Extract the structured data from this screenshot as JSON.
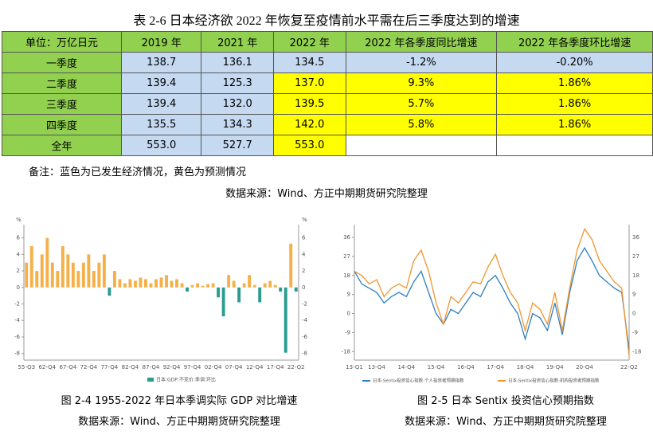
{
  "table": {
    "title": "表 2-6 日本经济欲 2022 年恢复至疫情前水平需在后三季度达到的增速",
    "columns": [
      "单位：万亿日元",
      "2019 年",
      "2021 年",
      "2022 年",
      "2022 年各季度同比增速",
      "2022 年各季度环比增速"
    ],
    "rows": [
      [
        "一季度",
        "138.7",
        "136.1",
        "134.5",
        "-1.2%",
        "-0.20%"
      ],
      [
        "二季度",
        "139.4",
        "125.3",
        "137.0",
        "9.3%",
        "1.86%"
      ],
      [
        "三季度",
        "139.4",
        "132.0",
        "139.5",
        "5.7%",
        "1.86%"
      ],
      [
        "四季度",
        "135.5",
        "134.3",
        "142.0",
        "5.8%",
        "1.86%"
      ],
      [
        "全年",
        "553.0",
        "527.7",
        "553.0",
        "",
        ""
      ]
    ],
    "note": "备注：蓝色为已发生经济情况，黄色为预测情况",
    "source": "数据来源：Wind、方正中期期货研究院整理"
  },
  "chart_data": [
    {
      "type": "bar",
      "caption": "图 2-4 1955-2022 年日本季调实际 GDP 对比增速",
      "source": "数据来源：Wind、方正中期期货研究院整理",
      "y_unit": "%",
      "categories": [
        "55-Q3",
        null,
        null,
        null,
        "62-Q4",
        null,
        null,
        null,
        "67-Q4",
        null,
        null,
        null,
        "72-Q4",
        null,
        null,
        null,
        "77-Q4",
        null,
        null,
        null,
        "82-Q4",
        null,
        null,
        null,
        "87-Q4",
        null,
        null,
        null,
        "92-Q4",
        null,
        null,
        null,
        "97-Q4",
        null,
        null,
        null,
        "02-Q4",
        null,
        null,
        null,
        "07-Q4",
        null,
        null,
        null,
        "12-Q4",
        null,
        null,
        null,
        "17-Q4",
        null,
        null,
        null,
        "22-Q2"
      ],
      "series": [
        {
          "name": "日本:GDP:不变价:季调:环比",
          "color": "#f5b04a",
          "negative_color": "#2a9d8f",
          "values": [
            3,
            5,
            2,
            4,
            6,
            3,
            2,
            5,
            4,
            3,
            2,
            3,
            4,
            2,
            3,
            4,
            -1,
            2,
            1,
            0.5,
            1,
            0.8,
            1.2,
            1,
            0.5,
            1,
            1.2,
            1.5,
            0.8,
            1,
            0.5,
            -0.5,
            0.3,
            0.5,
            0.2,
            0.4,
            0.5,
            -1.2,
            -3.5,
            1.5,
            0.8,
            -1.8,
            0.5,
            1.5,
            0.3,
            -1.8,
            0.5,
            0.8,
            0.3,
            -0.5,
            -7.9,
            5.3,
            -0.5
          ]
        }
      ],
      "ylim": [
        -8.8,
        7.6
      ],
      "yticks": [
        -8,
        -6,
        -4,
        -2,
        0,
        2,
        4,
        6
      ]
    },
    {
      "type": "line",
      "caption": "图 2-5 日本 Sentix 投资信心预期指数",
      "source": "数据来源：Wind、方正中期期货研究院整理",
      "categories": [
        "13-Q1",
        null,
        null,
        "13-Q4",
        null,
        null,
        null,
        "14-Q4",
        null,
        null,
        null,
        "15-Q4",
        null,
        null,
        null,
        "16-Q4",
        null,
        null,
        null,
        "17-Q4",
        null,
        null,
        null,
        "18-Q4",
        null,
        null,
        null,
        "19-Q4",
        null,
        null,
        null,
        "20-Q4",
        null,
        null,
        null,
        null,
        null,
        "22-Q2"
      ],
      "series": [
        {
          "name": "日本:Sentix投资信心指数:个人投资者预期指数",
          "color": "#2e7fc0",
          "values": [
            20,
            14,
            12,
            10,
            5,
            8,
            10,
            8,
            15,
            20,
            10,
            0,
            -5,
            2,
            0,
            5,
            10,
            8,
            15,
            18,
            12,
            5,
            0,
            -12,
            0,
            -2,
            -8,
            5,
            -10,
            10,
            25,
            31,
            25,
            18,
            15,
            12,
            10,
            -17
          ]
        },
        {
          "name": "日本:Sentix投资信心指数:机构投资者预期指数",
          "color": "#f0952e",
          "values": [
            20,
            18,
            14,
            16,
            8,
            12,
            14,
            12,
            25,
            30,
            20,
            5,
            -5,
            8,
            5,
            10,
            15,
            14,
            22,
            28,
            18,
            10,
            5,
            -8,
            5,
            2,
            -5,
            10,
            -8,
            12,
            30,
            40,
            35,
            25,
            20,
            15,
            12,
            -20
          ]
        }
      ],
      "ylim": [
        -22,
        42
      ],
      "yticks": [
        -18,
        -9,
        0,
        9,
        18,
        27,
        36
      ]
    }
  ]
}
